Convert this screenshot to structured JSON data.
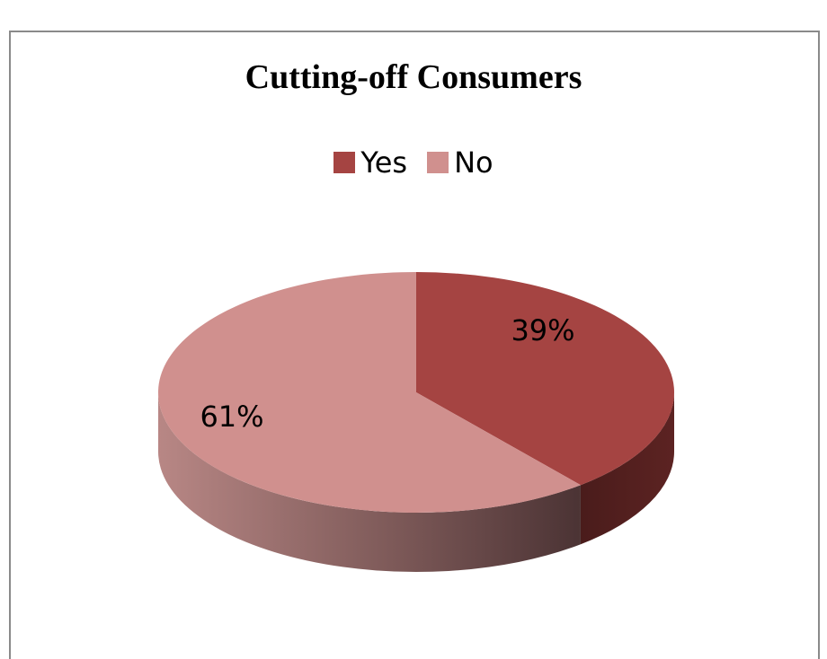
{
  "chart_data": {
    "type": "pie",
    "title": "Cutting-off Consumers",
    "legend_position": "top",
    "three_d": true,
    "slices": [
      {
        "name": "Yes",
        "value": 39,
        "label": "39%",
        "color": "#a54442"
      },
      {
        "name": "No",
        "value": 61,
        "label": "61%",
        "color": "#d0908e"
      }
    ]
  }
}
